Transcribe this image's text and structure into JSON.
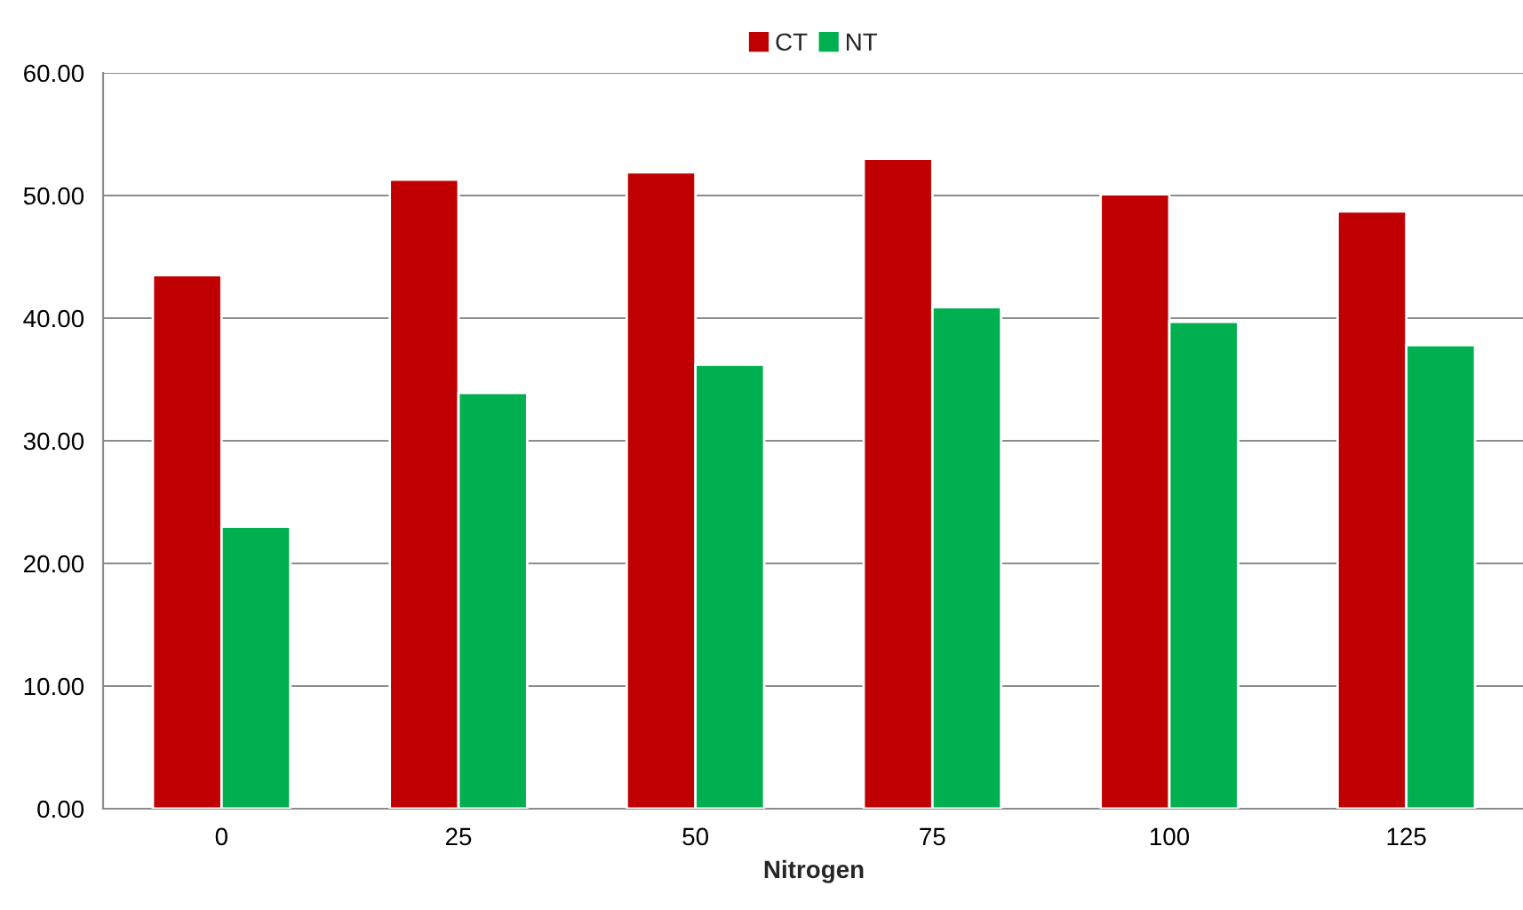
{
  "chart_data": {
    "type": "bar",
    "xlabel": "Nitrogen",
    "categories": [
      "0",
      "25",
      "50",
      "75",
      "100",
      "125"
    ],
    "series": [
      {
        "name": "CT",
        "color": "#c00000",
        "values": [
          43.5,
          51.3,
          51.9,
          53.0,
          50.1,
          48.7
        ]
      },
      {
        "name": "NT",
        "color": "#00b050",
        "values": [
          23.0,
          33.9,
          36.2,
          40.9,
          39.7,
          37.8
        ]
      }
    ],
    "ylim": [
      0,
      60
    ],
    "yticks": [
      {
        "value": 0,
        "label": "0.00"
      },
      {
        "value": 10,
        "label": "10.00"
      },
      {
        "value": 20,
        "label": "20.00"
      },
      {
        "value": 30,
        "label": "30.00"
      },
      {
        "value": 40,
        "label": "40.00"
      },
      {
        "value": 50,
        "label": "50.00"
      },
      {
        "value": 60,
        "label": "60.00"
      }
    ],
    "grid": "y",
    "legend": "top"
  }
}
